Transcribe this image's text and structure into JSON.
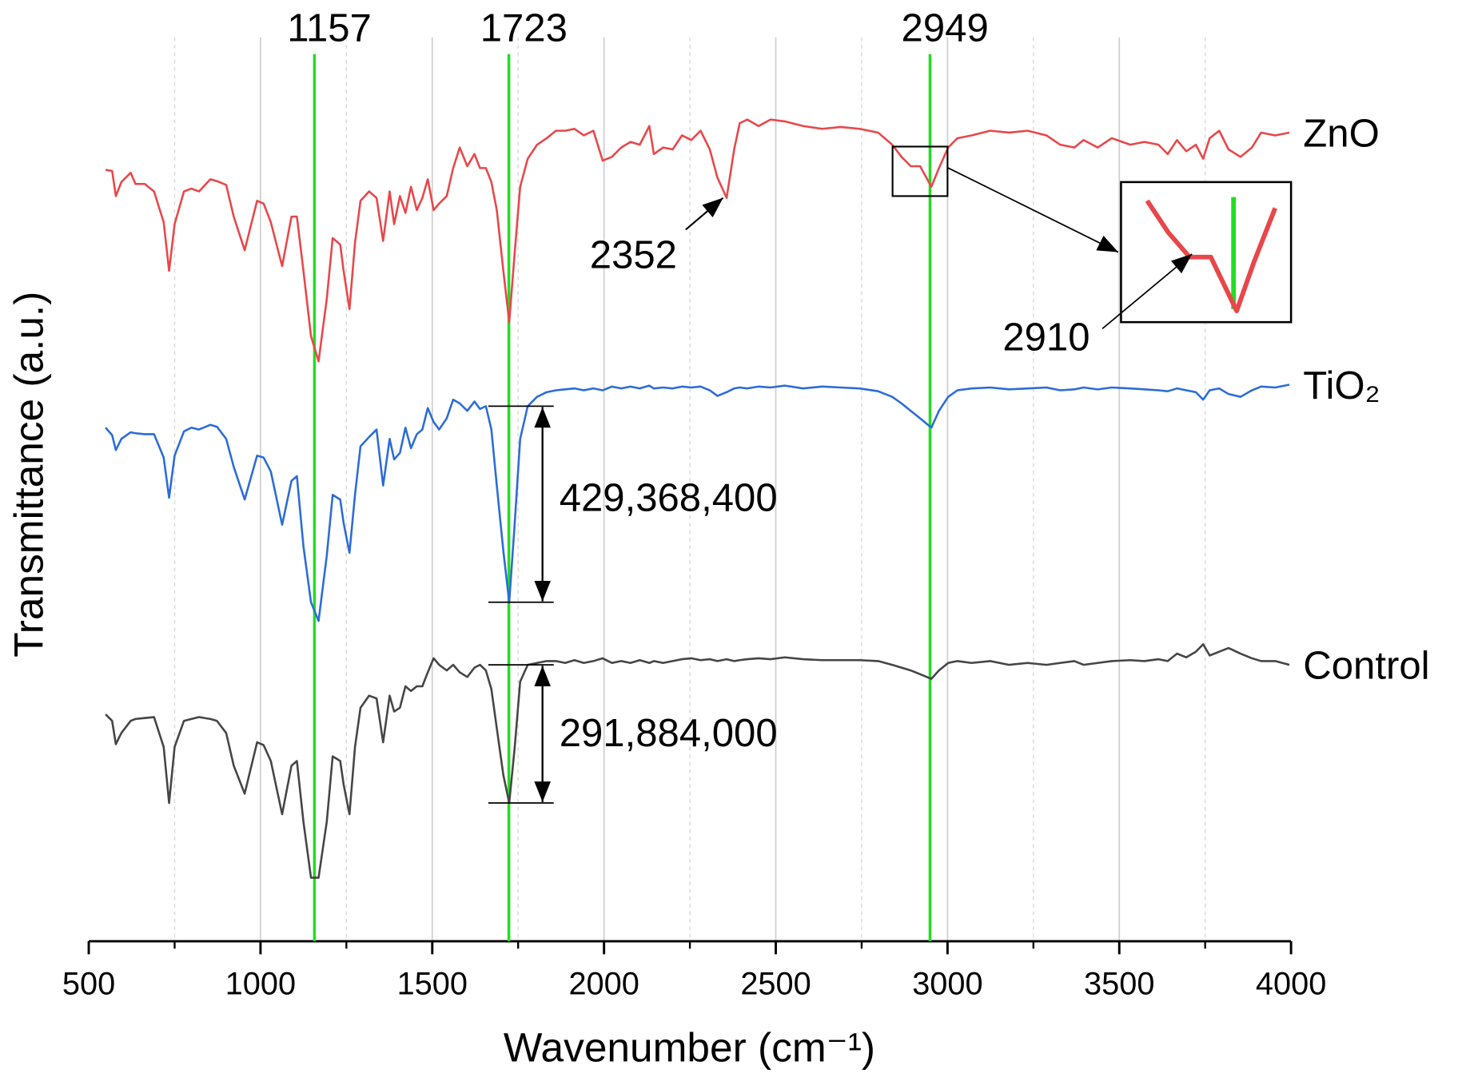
{
  "chart_data": {
    "type": "line",
    "xlabel": "Wavenumber (cm⁻¹)",
    "ylabel": "Transmittance (a.u.)",
    "xlim": [
      500,
      4000
    ],
    "ylim": [
      0,
      100
    ],
    "xticks": [
      500,
      1000,
      1500,
      2000,
      2500,
      3000,
      3500,
      4000
    ],
    "xticks_minor": [
      750,
      1250,
      1750,
      2250,
      2750,
      3250,
      3750
    ],
    "grid": true,
    "x": [
      549,
      568,
      579,
      595,
      622,
      636,
      663,
      690,
      718,
      734,
      750,
      777,
      799,
      821,
      854,
      873,
      900,
      922,
      954,
      990,
      1009,
      1030,
      1063,
      1090,
      1106,
      1125,
      1147,
      1169,
      1193,
      1210,
      1232,
      1242,
      1259,
      1275,
      1291,
      1316,
      1338,
      1357,
      1376,
      1389,
      1406,
      1422,
      1438,
      1455,
      1471,
      1487,
      1504,
      1520,
      1542,
      1561,
      1580,
      1602,
      1623,
      1639,
      1656,
      1672,
      1688,
      1707,
      1724,
      1740,
      1756,
      1778,
      1805,
      1833,
      1860,
      1887,
      1914,
      1941,
      1969,
      1996,
      2023,
      2050,
      2077,
      2104,
      2132,
      2145,
      2172,
      2200,
      2227,
      2254,
      2281,
      2308,
      2330,
      2357,
      2379,
      2395,
      2417,
      2450,
      2485,
      2526,
      2580,
      2635,
      2689,
      2744,
      2798,
      2839,
      2866,
      2893,
      2920,
      2953,
      2975,
      3002,
      3029,
      3070,
      3124,
      3179,
      3233,
      3288,
      3328,
      3369,
      3396,
      3437,
      3478,
      3532,
      3573,
      3614,
      3641,
      3668,
      3695,
      3723,
      3744,
      3763,
      3791,
      3818,
      3853,
      3886,
      3913,
      3954,
      3995
    ],
    "series": [
      {
        "name": "ZnO",
        "color": "#e8474a",
        "values": [
          82.6,
          82.5,
          79.8,
          81.3,
          82.3,
          81.1,
          81.1,
          80.3,
          77.0,
          71.8,
          76.8,
          80.3,
          80.6,
          80.3,
          81.6,
          81.4,
          81.0,
          77.6,
          74.0,
          79.3,
          79.0,
          77.0,
          72.3,
          77.6,
          77.6,
          71.8,
          64.8,
          62.1,
          68.8,
          75.3,
          74.6,
          71.8,
          67.7,
          74.8,
          79.3,
          80.3,
          79.6,
          75.0,
          80.3,
          76.8,
          79.8,
          78.0,
          80.8,
          78.3,
          79.6,
          81.6,
          78.3,
          79.0,
          79.8,
          82.8,
          85.0,
          83.0,
          84.3,
          82.8,
          82.8,
          81.3,
          78.3,
          71.8,
          66.3,
          73.8,
          80.8,
          83.8,
          85.3,
          86.0,
          86.8,
          86.8,
          87.0,
          86.3,
          86.8,
          83.6,
          84.0,
          85.0,
          85.6,
          85.3,
          87.3,
          84.3,
          85.0,
          84.8,
          86.3,
          85.8,
          86.8,
          84.8,
          81.8,
          79.6,
          84.8,
          87.6,
          88.0,
          87.3,
          88.0,
          87.8,
          87.3,
          87.0,
          87.2,
          87.0,
          86.6,
          85.3,
          84.0,
          83.0,
          83.0,
          80.8,
          82.8,
          85.0,
          86.0,
          86.3,
          86.8,
          86.6,
          86.8,
          86.3,
          85.3,
          85.0,
          85.8,
          85.0,
          86.0,
          85.3,
          85.6,
          85.3,
          84.3,
          85.8,
          84.6,
          85.3,
          83.8,
          86.0,
          86.8,
          84.8,
          84.0,
          85.0,
          86.6,
          86.3,
          86.6
        ]
      },
      {
        "name": "TiO₂",
        "color": "#2b6cd8",
        "values": [
          55.0,
          54.2,
          52.6,
          53.8,
          54.5,
          54.4,
          54.3,
          54.3,
          51.8,
          47.5,
          52.0,
          54.6,
          55.0,
          54.8,
          55.3,
          55.1,
          53.8,
          50.8,
          47.3,
          52.0,
          51.8,
          50.3,
          44.6,
          49.3,
          49.8,
          42.3,
          36.3,
          34.3,
          41.3,
          47.8,
          47.3,
          44.8,
          41.6,
          47.8,
          53.0,
          54.0,
          54.8,
          48.8,
          53.8,
          51.6,
          52.3,
          55.0,
          52.8,
          54.3,
          54.8,
          57.1,
          55.6,
          54.8,
          56.0,
          58.0,
          57.6,
          56.8,
          57.8,
          57.0,
          57.3,
          54.8,
          48.8,
          41.8,
          36.3,
          44.8,
          53.8,
          57.3,
          58.3,
          58.8,
          59.0,
          59.1,
          59.2,
          59.0,
          59.2,
          59.0,
          59.4,
          59.2,
          59.4,
          59.2,
          59.5,
          59.2,
          59.3,
          59.2,
          59.4,
          59.3,
          59.4,
          59.0,
          58.4,
          58.8,
          59.2,
          59.3,
          59.2,
          59.4,
          59.3,
          59.5,
          59.2,
          59.4,
          59.3,
          59.2,
          58.9,
          58.3,
          57.6,
          56.8,
          56.0,
          55.0,
          56.8,
          58.3,
          59.0,
          59.2,
          59.3,
          59.1,
          59.2,
          59.3,
          59.0,
          59.1,
          59.3,
          59.1,
          59.3,
          59.2,
          59.1,
          59.0,
          58.9,
          59.2,
          59.0,
          58.8,
          58.0,
          59.0,
          59.2,
          58.6,
          58.3,
          59.0,
          59.4,
          59.3,
          59.6
        ]
      },
      {
        "name": "Control",
        "color": "#454545",
        "values": [
          24.3,
          23.6,
          21.1,
          22.3,
          23.6,
          23.8,
          23.9,
          24.0,
          20.8,
          14.8,
          20.8,
          23.6,
          23.8,
          24.0,
          23.8,
          23.6,
          22.3,
          18.8,
          15.8,
          21.3,
          21.0,
          19.3,
          13.6,
          18.8,
          19.3,
          12.8,
          6.8,
          6.8,
          12.8,
          19.8,
          19.3,
          16.8,
          13.6,
          20.8,
          25.0,
          26.3,
          26.0,
          21.3,
          26.3,
          24.6,
          25.0,
          27.3,
          26.8,
          27.3,
          27.3,
          28.8,
          30.3,
          29.6,
          29.0,
          29.6,
          28.8,
          28.3,
          29.3,
          29.6,
          29.0,
          27.0,
          22.8,
          17.8,
          14.8,
          20.8,
          27.8,
          29.6,
          29.8,
          30.0,
          30.0,
          29.8,
          30.1,
          29.8,
          30.0,
          30.3,
          29.8,
          30.0,
          29.8,
          30.1,
          29.8,
          30.0,
          29.8,
          30.0,
          30.2,
          30.3,
          30.1,
          30.2,
          30.0,
          30.2,
          30.0,
          30.1,
          30.2,
          30.3,
          30.2,
          30.4,
          30.2,
          30.1,
          30.1,
          30.1,
          30.0,
          29.6,
          29.3,
          29.0,
          28.6,
          28.1,
          29.0,
          29.8,
          30.0,
          29.8,
          30.0,
          29.6,
          29.8,
          29.6,
          29.8,
          30.0,
          29.6,
          29.8,
          30.0,
          30.1,
          30.0,
          30.2,
          30.0,
          30.8,
          30.4,
          31.0,
          31.8,
          30.6,
          31.0,
          31.4,
          30.8,
          30.3,
          30.0,
          30.0,
          29.6
        ]
      }
    ],
    "peak_lines": [
      1157,
      1723,
      2949
    ],
    "peak_line_color": "#22dd22",
    "point_labels": [
      2352,
      2910
    ],
    "zoom_xlim": [
      2840,
      3000
    ],
    "height_labels": [
      "429,368,400",
      "291,884,000"
    ]
  }
}
